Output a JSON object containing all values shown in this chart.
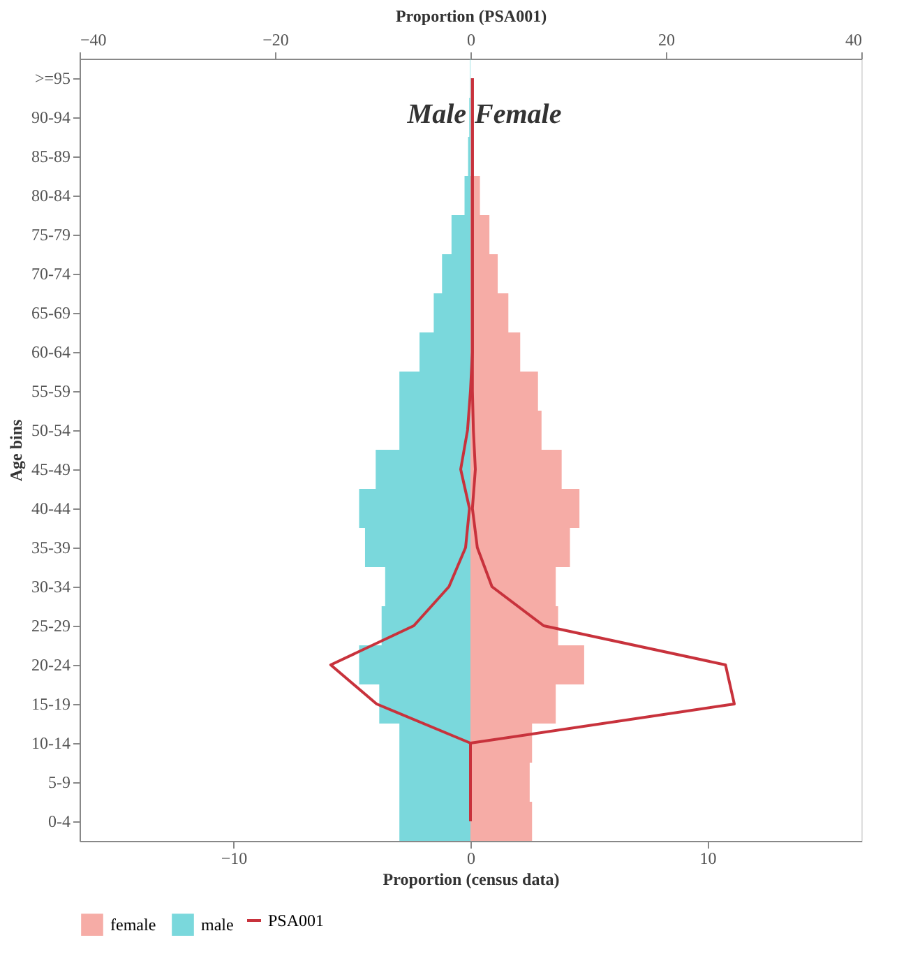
{
  "chart_data": {
    "type": "bar",
    "orientation": "horizontal",
    "stacked": true,
    "xlabel": "Proportion (census data)",
    "x2label": "Proportion (PSA001)",
    "ylabel": "Age bins",
    "categories": [
      ">=95",
      "90-94",
      "85-89",
      "80-84",
      "75-79",
      "70-74",
      "65-69",
      "60-64",
      "55-59",
      "50-54",
      "45-49",
      "40-44",
      "35-39",
      "30-34",
      "25-29",
      "20-24",
      "15-19",
      "10-14",
      "5-9",
      "0-4"
    ],
    "series": [
      {
        "name": "female",
        "color": "#f6aca6",
        "values": [
          null,
          null,
          null,
          0.4,
          0.8,
          1.15,
          1.6,
          2.1,
          2.85,
          3.0,
          3.85,
          4.6,
          4.2,
          3.6,
          3.7,
          4.8,
          3.6,
          2.6,
          2.5,
          2.6
        ]
      },
      {
        "name": "male",
        "color": "#7ad8dc",
        "values": [
          -0.02,
          -0.05,
          -0.1,
          -0.25,
          -0.8,
          -1.2,
          -1.55,
          -2.15,
          -3.0,
          -3.0,
          -4.0,
          -4.7,
          -4.45,
          -3.6,
          -3.75,
          -4.7,
          -3.85,
          -3.0,
          -3.0,
          -3.0
        ]
      },
      {
        "name": "PSA001",
        "type": "line",
        "axis": "x2",
        "color": "#c8323c",
        "values": [
          0.2,
          0.2,
          0.2,
          0.2,
          0.2,
          0.2,
          0.2,
          0.2,
          0.2,
          0.3,
          0.5,
          0.2,
          0.7,
          2.2,
          7.5,
          26.1,
          27.0,
          0,
          0,
          0
        ]
      },
      {
        "type": "line",
        "axis": "x2",
        "color": "#c8323c",
        "values": [
          0.2,
          0.2,
          0.2,
          0.2,
          0.2,
          0.2,
          0.2,
          0.2,
          0,
          -0.3,
          -1.0,
          -0.1,
          -0.5,
          -2.2,
          -5.8,
          -14.3,
          -9.6,
          0,
          0,
          0
        ]
      }
    ],
    "xlim": [
      -16.5,
      16.5
    ],
    "xticks": [
      -10,
      0,
      10
    ],
    "x2lim": [
      -40,
      40
    ],
    "x2ticks": [
      -40,
      -20,
      0,
      20,
      40
    ],
    "annotations": [
      "Male",
      "Female"
    ],
    "legend": "bottom",
    "grid": false
  }
}
